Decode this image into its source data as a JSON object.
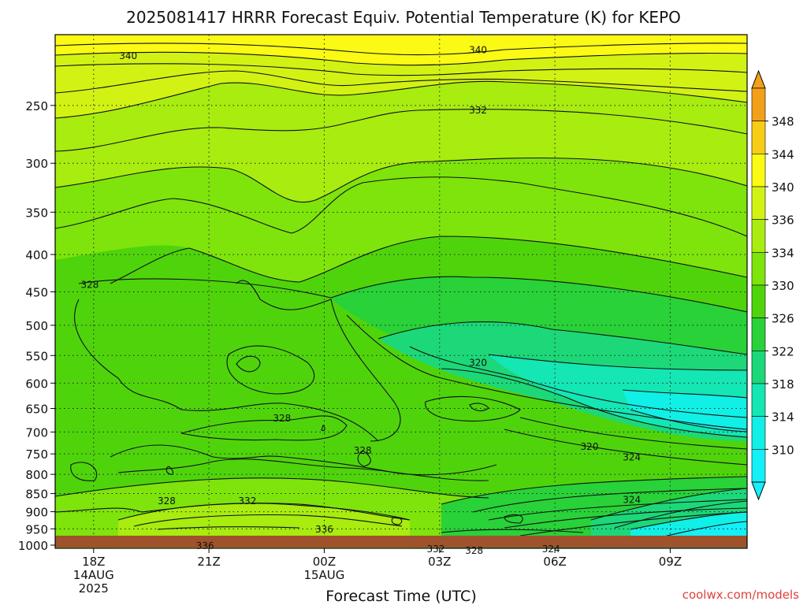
{
  "chart_data": {
    "type": "heatmap",
    "title": "2025081417 HRRR Forecast Equiv. Potential Temperature (K) for KEPO",
    "xlabel": "Forecast Time (UTC)",
    "ylabel": "",
    "x_ticks": [
      {
        "label": "18Z",
        "sub1": "14AUG",
        "sub2": "2025",
        "hour": 18
      },
      {
        "label": "21Z",
        "sub1": "",
        "sub2": "",
        "hour": 21
      },
      {
        "label": "00Z",
        "sub1": "15AUG",
        "sub2": "",
        "hour": 24
      },
      {
        "label": "03Z",
        "sub1": "",
        "sub2": "",
        "hour": 27
      },
      {
        "label": "06Z",
        "sub1": "",
        "sub2": "",
        "hour": 30
      },
      {
        "label": "09Z",
        "sub1": "",
        "sub2": "",
        "hour": 33
      }
    ],
    "xlim_hours": [
      17,
      35
    ],
    "y_ticks": [
      "250",
      "300",
      "350",
      "400",
      "450",
      "500",
      "550",
      "600",
      "650",
      "700",
      "750",
      "800",
      "850",
      "900",
      "950",
      "1000"
    ],
    "y_scale": "log",
    "ylim_hpa": [
      1010,
      200
    ],
    "grid": true,
    "colorbar": {
      "labels": [
        "348",
        "344",
        "340",
        "336",
        "334",
        "330",
        "326",
        "322",
        "318",
        "314",
        "310"
      ],
      "colors": [
        "#f2a019",
        "#f7cc14",
        "#fafa14",
        "#d2f214",
        "#a8ec10",
        "#7ee40c",
        "#4fd40c",
        "#28d238",
        "#1cd878",
        "#14e6b4",
        "#10f0e6",
        "#14f0f8"
      ],
      "unit": "K"
    },
    "contour_labels": [
      {
        "text": "340",
        "hour": 18.9,
        "hpa": 214
      },
      {
        "text": "340",
        "hour": 28.0,
        "hpa": 210
      },
      {
        "text": "332",
        "hour": 28.0,
        "hpa": 254
      },
      {
        "text": "328",
        "hour": 17.9,
        "hpa": 440
      },
      {
        "text": "320",
        "hour": 28.0,
        "hpa": 563
      },
      {
        "text": "328",
        "hour": 22.9,
        "hpa": 670
      },
      {
        "text": "328",
        "hour": 25.0,
        "hpa": 742
      },
      {
        "text": "320",
        "hour": 30.9,
        "hpa": 733
      },
      {
        "text": "324",
        "hour": 32.0,
        "hpa": 758
      },
      {
        "text": "328",
        "hour": 19.9,
        "hpa": 870
      },
      {
        "text": "332",
        "hour": 22.0,
        "hpa": 870
      },
      {
        "text": "324",
        "hour": 32.0,
        "hpa": 867
      },
      {
        "text": "336",
        "hour": 24.0,
        "hpa": 952
      },
      {
        "text": "336",
        "hour": 20.9,
        "hpa": 1002
      },
      {
        "text": "332",
        "hour": 26.9,
        "hpa": 1012
      },
      {
        "text": "328",
        "hour": 27.9,
        "hpa": 1018
      },
      {
        "text": "324",
        "hour": 29.9,
        "hpa": 1012
      }
    ],
    "ground_color": "#a0522d"
  },
  "credit": "coolwx.com/models"
}
